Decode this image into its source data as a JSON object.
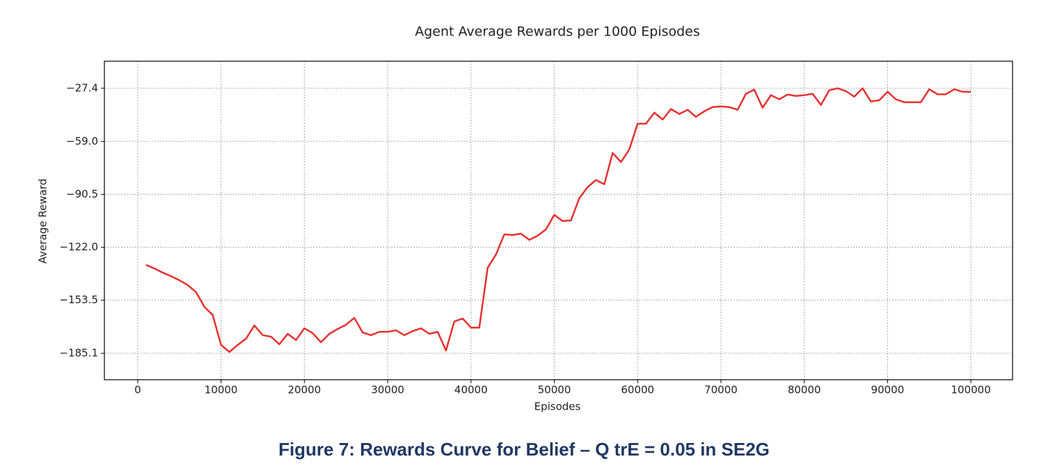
{
  "chart_data": {
    "type": "line",
    "title": "Agent Average Rewards per 1000 Episodes",
    "xlabel": "Episodes",
    "ylabel": "Average Reward",
    "caption": "Figure 7: Rewards Curve for Belief – Q trE = 0.05 in SE2G",
    "x": [
      1000,
      2000,
      3000,
      4000,
      5000,
      6000,
      7000,
      8000,
      9000,
      10000,
      11000,
      12000,
      13000,
      14000,
      15000,
      16000,
      17000,
      18000,
      19000,
      20000,
      21000,
      22000,
      23000,
      24000,
      25000,
      26000,
      27000,
      28000,
      29000,
      30000,
      31000,
      32000,
      33000,
      34000,
      35000,
      36000,
      37000,
      38000,
      39000,
      40000,
      41000,
      42000,
      43000,
      44000,
      45000,
      46000,
      47000,
      48000,
      49000,
      50000,
      51000,
      52000,
      53000,
      54000,
      55000,
      56000,
      57000,
      58000,
      59000,
      60000,
      61000,
      62000,
      63000,
      64000,
      65000,
      66000,
      67000,
      68000,
      69000,
      70000,
      71000,
      72000,
      73000,
      74000,
      75000,
      76000,
      77000,
      78000,
      79000,
      80000,
      81000,
      82000,
      83000,
      84000,
      85000,
      86000,
      87000,
      88000,
      89000,
      90000,
      91000,
      92000,
      93000,
      94000,
      95000,
      96000,
      97000,
      98000,
      99000,
      100000
    ],
    "series": [
      {
        "name": "Average Reward",
        "color": "#e8302f",
        "values": [
          -132.5,
          -134.6,
          -137.1,
          -139.2,
          -141.6,
          -144.5,
          -148.7,
          -157.4,
          -162.3,
          -180.1,
          -184.3,
          -180.1,
          -176.4,
          -168.5,
          -174.3,
          -175.2,
          -179.7,
          -173.5,
          -177.2,
          -170.2,
          -173.1,
          -178.5,
          -173.5,
          -170.6,
          -168.1,
          -164.0,
          -172.7,
          -174.3,
          -172.3,
          -172.3,
          -171.4,
          -174.3,
          -171.9,
          -170.2,
          -173.5,
          -172.3,
          -183.4,
          -166.1,
          -164.4,
          -169.8,
          -169.8,
          -134.2,
          -126.3,
          -114.3,
          -114.7,
          -113.9,
          -117.6,
          -115.1,
          -111.4,
          -102.7,
          -106.4,
          -106.0,
          -92.8,
          -86.2,
          -82.0,
          -84.5,
          -65.9,
          -71.3,
          -63.8,
          -48.5,
          -48.5,
          -41.9,
          -46.0,
          -39.8,
          -42.7,
          -40.2,
          -44.4,
          -41.1,
          -38.6,
          -38.2,
          -38.6,
          -40.2,
          -30.7,
          -28.2,
          -39.0,
          -31.5,
          -34.0,
          -31.1,
          -32.0,
          -31.5,
          -30.7,
          -37.3,
          -28.6,
          -27.4,
          -29.1,
          -32.4,
          -27.4,
          -35.3,
          -34.5,
          -29.5,
          -34.0,
          -35.7,
          -35.7,
          -35.7,
          -28.0,
          -31.0,
          -31.0,
          -28.0,
          -29.5,
          -29.5
        ]
      }
    ],
    "xlim": [
      -4000,
      105000
    ],
    "ylim": [
      -200.8,
      -11.3
    ],
    "xticks": [
      0,
      10000,
      20000,
      30000,
      40000,
      50000,
      60000,
      70000,
      80000,
      90000,
      100000
    ],
    "yticks": [
      {
        "value": -27.4,
        "label": "−27.4"
      },
      {
        "value": -59,
        "label": "−59.0"
      },
      {
        "value": -90.5,
        "label": "−90.5"
      },
      {
        "value": -122,
        "label": "−122.0"
      },
      {
        "value": -153.5,
        "label": "−153.5"
      },
      {
        "value": -185.1,
        "label": "−185.1"
      }
    ],
    "grid": true
  }
}
